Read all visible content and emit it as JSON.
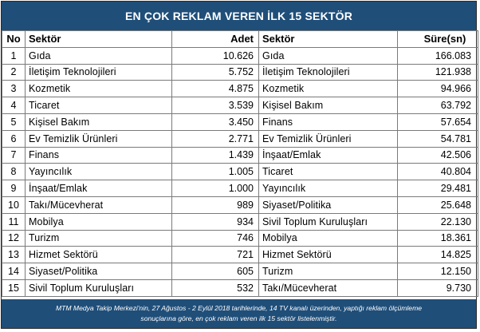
{
  "title": "EN ÇOK REKLAM VEREN İLK 15 SEKTÖR",
  "headers": {
    "no": "No",
    "sektor1": "Sektör",
    "adet": "Adet",
    "sektor2": "Sektör",
    "sure": "Süre(sn)"
  },
  "rows": [
    {
      "no": "1",
      "sektor1": "Gıda",
      "adet": "10.626",
      "sektor2": "Gıda",
      "sure": "166.083"
    },
    {
      "no": "2",
      "sektor1": "İletişim Teknolojileri",
      "adet": "5.752",
      "sektor2": "İletişim Teknolojileri",
      "sure": "121.938"
    },
    {
      "no": "3",
      "sektor1": "Kozmetik",
      "adet": "4.875",
      "sektor2": "Kozmetik",
      "sure": "94.966"
    },
    {
      "no": "4",
      "sektor1": "Ticaret",
      "adet": "3.539",
      "sektor2": "Kişisel Bakım",
      "sure": "63.792"
    },
    {
      "no": "5",
      "sektor1": "Kişisel Bakım",
      "adet": "3.450",
      "sektor2": "Finans",
      "sure": "57.654"
    },
    {
      "no": "6",
      "sektor1": "Ev Temizlik Ürünleri",
      "adet": "2.771",
      "sektor2": "Ev Temizlik Ürünleri",
      "sure": "54.781"
    },
    {
      "no": "7",
      "sektor1": "Finans",
      "adet": "1.439",
      "sektor2": "İnşaat/Emlak",
      "sure": "42.506"
    },
    {
      "no": "8",
      "sektor1": "Yayıncılık",
      "adet": "1.005",
      "sektor2": "Ticaret",
      "sure": "40.804"
    },
    {
      "no": "9",
      "sektor1": "İnşaat/Emlak",
      "adet": "1.000",
      "sektor2": "Yayıncılık",
      "sure": "29.481"
    },
    {
      "no": "10",
      "sektor1": "Takı/Mücevherat",
      "adet": "989",
      "sektor2": "Siyaset/Politika",
      "sure": "25.648"
    },
    {
      "no": "11",
      "sektor1": "Mobilya",
      "adet": "934",
      "sektor2": "Sivil Toplum Kuruluşları",
      "sure": "22.130"
    },
    {
      "no": "12",
      "sektor1": "Turizm",
      "adet": "746",
      "sektor2": "Mobilya",
      "sure": "18.361"
    },
    {
      "no": "13",
      "sektor1": "Hizmet Sektörü",
      "adet": "721",
      "sektor2": "Hizmet Sektörü",
      "sure": "14.825"
    },
    {
      "no": "14",
      "sektor1": "Siyaset/Politika",
      "adet": "605",
      "sektor2": "Turizm",
      "sure": "12.150"
    },
    {
      "no": "15",
      "sektor1": "Sivil Toplum Kuruluşları",
      "adet": "532",
      "sektor2": "Takı/Mücevherat",
      "sure": "9.730"
    }
  ],
  "footer": {
    "line1": "MTM Medya Takip Merkezi'nin,  27 Ağustos - 2 Eylül 2018 tarihlerinde, 14 TV kanalı üzerinden,  yaptığı reklam ölçümleme",
    "line2": "sonuçlarına göre, en çok reklam veren ilk 15 sektör  listelenmiştir."
  },
  "colors": {
    "header_bg": "#1f4e79",
    "header_text": "#ffffff",
    "border": "#7a7a7a"
  }
}
